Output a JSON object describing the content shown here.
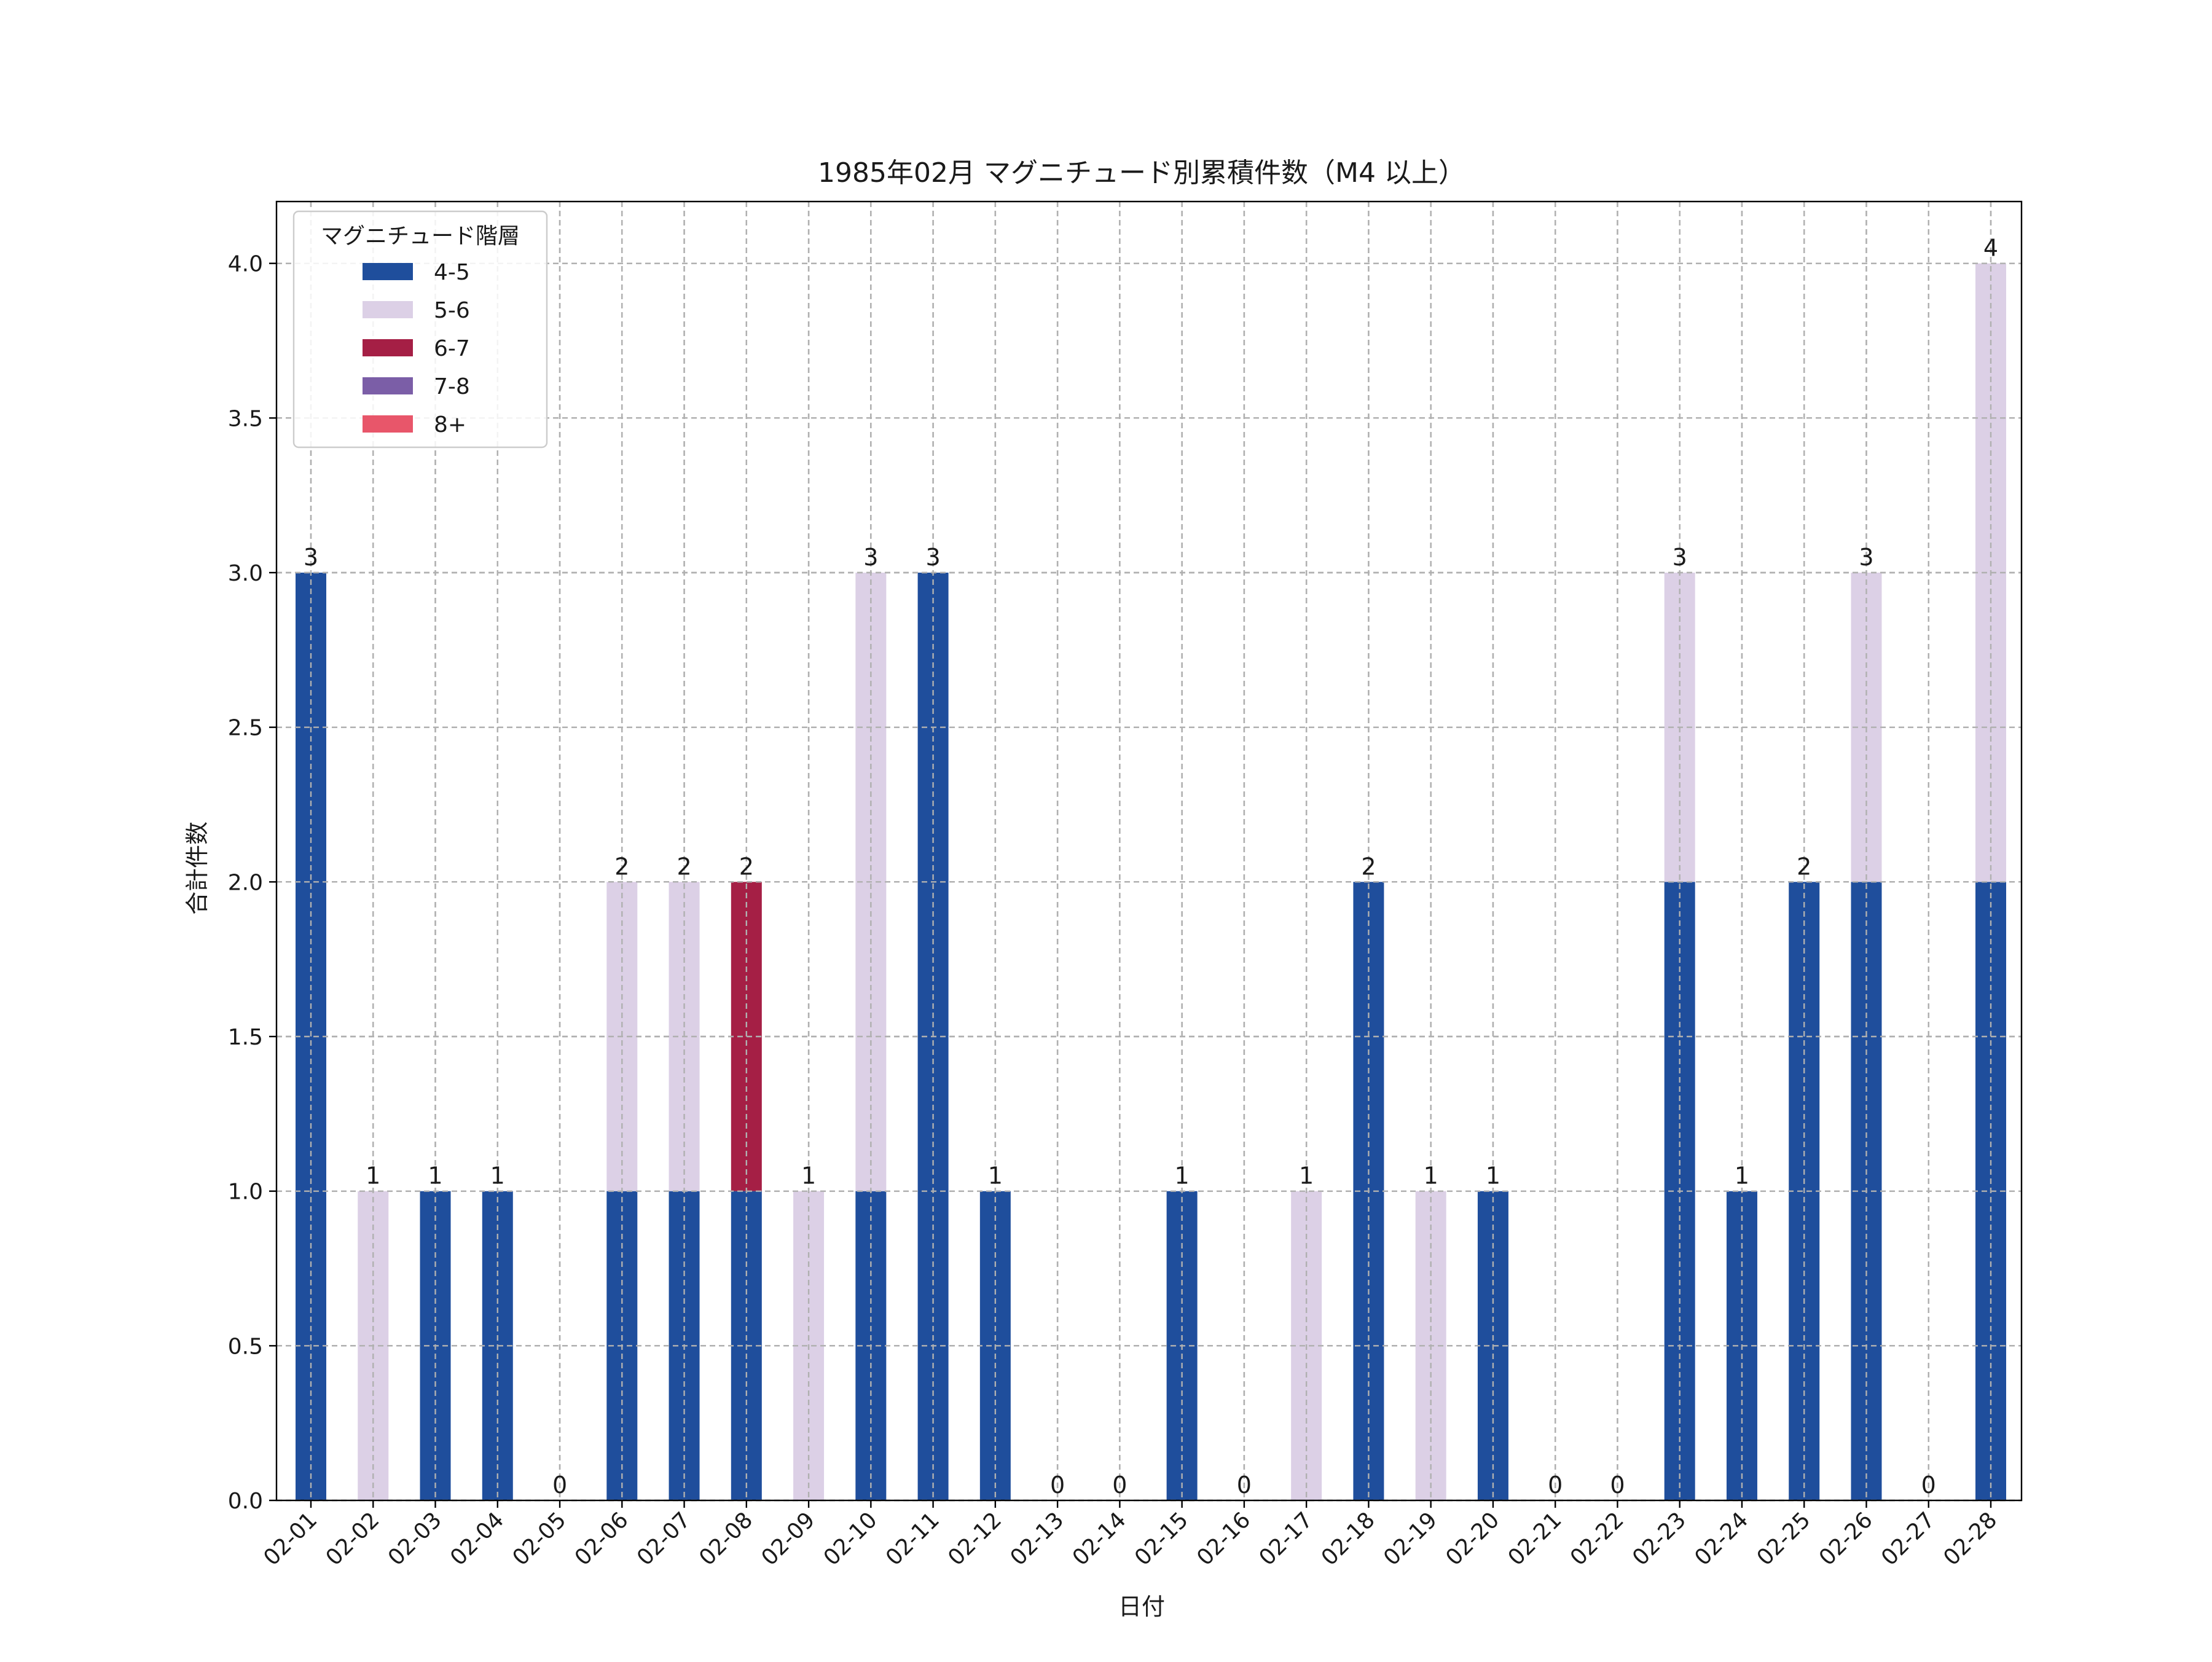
{
  "chart_data": {
    "type": "bar",
    "stacked": true,
    "title": "1985年02月 マグニチュード別累積件数（M4 以上）",
    "xlabel": "日付",
    "ylabel": "合計件数",
    "ylim": [
      0,
      4.2
    ],
    "yticks": [
      "0.0",
      "0.5",
      "1.0",
      "1.5",
      "2.0",
      "2.5",
      "3.0",
      "3.5",
      "4.0"
    ],
    "grid": true,
    "legend": {
      "title": "マグニチュード階層",
      "placement": "top-left"
    },
    "categories": [
      "02-01",
      "02-02",
      "02-03",
      "02-04",
      "02-05",
      "02-06",
      "02-07",
      "02-08",
      "02-09",
      "02-10",
      "02-11",
      "02-12",
      "02-13",
      "02-14",
      "02-15",
      "02-16",
      "02-17",
      "02-18",
      "02-19",
      "02-20",
      "02-21",
      "02-22",
      "02-23",
      "02-24",
      "02-25",
      "02-26",
      "02-27",
      "02-28"
    ],
    "series": [
      {
        "name": "4-5",
        "color": "#1f4e9c",
        "values": [
          3,
          0,
          1,
          1,
          0,
          1,
          1,
          1,
          0,
          1,
          3,
          1,
          0,
          0,
          1,
          0,
          0,
          2,
          0,
          1,
          0,
          0,
          2,
          1,
          2,
          2,
          0,
          2
        ]
      },
      {
        "name": "5-6",
        "color": "#dcd0e6",
        "values": [
          0,
          1,
          0,
          0,
          0,
          1,
          1,
          0,
          1,
          2,
          0,
          0,
          0,
          0,
          0,
          0,
          1,
          0,
          1,
          0,
          0,
          0,
          1,
          0,
          0,
          1,
          0,
          2
        ]
      },
      {
        "name": "6-7",
        "color": "#a51f45",
        "values": [
          0,
          0,
          0,
          0,
          0,
          0,
          0,
          1,
          0,
          0,
          0,
          0,
          0,
          0,
          0,
          0,
          0,
          0,
          0,
          0,
          0,
          0,
          0,
          0,
          0,
          0,
          0,
          0
        ]
      },
      {
        "name": "7-8",
        "color": "#7b5ea7",
        "values": [
          0,
          0,
          0,
          0,
          0,
          0,
          0,
          0,
          0,
          0,
          0,
          0,
          0,
          0,
          0,
          0,
          0,
          0,
          0,
          0,
          0,
          0,
          0,
          0,
          0,
          0,
          0,
          0
        ]
      },
      {
        "name": "8+",
        "color": "#e8566a",
        "values": [
          0,
          0,
          0,
          0,
          0,
          0,
          0,
          0,
          0,
          0,
          0,
          0,
          0,
          0,
          0,
          0,
          0,
          0,
          0,
          0,
          0,
          0,
          0,
          0,
          0,
          0,
          0,
          0
        ]
      }
    ],
    "totals": [
      3,
      1,
      1,
      1,
      0,
      2,
      2,
      2,
      1,
      3,
      3,
      1,
      0,
      0,
      1,
      0,
      1,
      2,
      1,
      1,
      0,
      0,
      3,
      1,
      2,
      3,
      0,
      4
    ]
  }
}
